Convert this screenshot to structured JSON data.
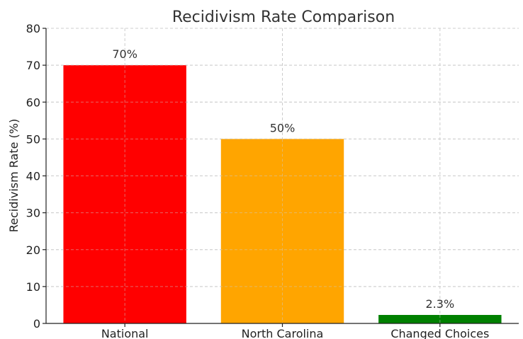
{
  "chart_data": {
    "type": "bar",
    "title": "Recidivism Rate Comparison",
    "xlabel": "",
    "ylabel": "Recidivism Rate (%)",
    "categories": [
      "National",
      "North Carolina",
      "Changed Choices"
    ],
    "values": [
      70,
      50,
      2.3
    ],
    "data_labels": [
      "70%",
      "50%",
      "2.3%"
    ],
    "bar_colors": [
      "#ff0000",
      "#ffa500",
      "#008000"
    ],
    "ylim": [
      0,
      80
    ],
    "yticks": [
      0,
      10,
      20,
      30,
      40,
      50,
      60,
      70,
      80
    ],
    "grid": true
  }
}
